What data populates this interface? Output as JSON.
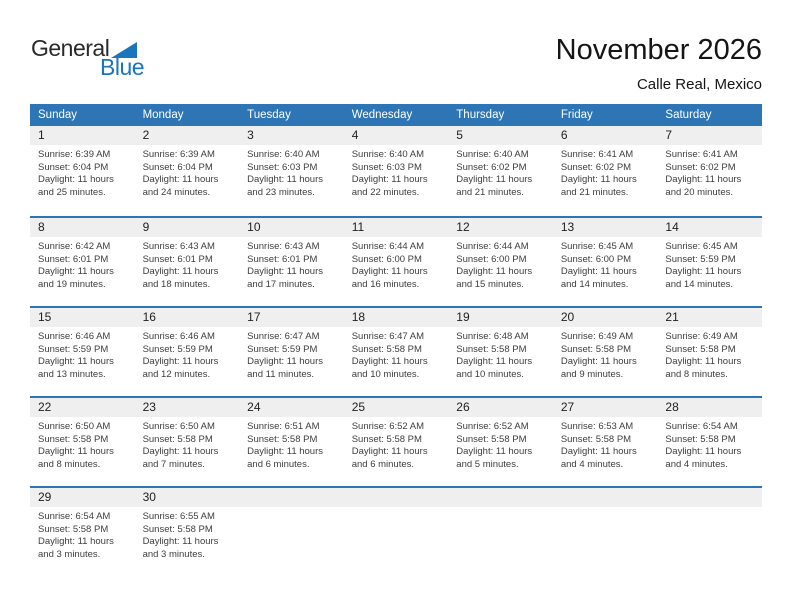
{
  "logo": {
    "word1": "General",
    "word2": "Blue"
  },
  "header": {
    "title": "November 2026",
    "subtitle": "Calle Real, Mexico"
  },
  "weekdays": [
    "Sunday",
    "Monday",
    "Tuesday",
    "Wednesday",
    "Thursday",
    "Friday",
    "Saturday"
  ],
  "weeks": [
    [
      {
        "day": "1",
        "sunrise": "Sunrise: 6:39 AM",
        "sunset": "Sunset: 6:04 PM",
        "daylight": "Daylight: 11 hours and 25 minutes."
      },
      {
        "day": "2",
        "sunrise": "Sunrise: 6:39 AM",
        "sunset": "Sunset: 6:04 PM",
        "daylight": "Daylight: 11 hours and 24 minutes."
      },
      {
        "day": "3",
        "sunrise": "Sunrise: 6:40 AM",
        "sunset": "Sunset: 6:03 PM",
        "daylight": "Daylight: 11 hours and 23 minutes."
      },
      {
        "day": "4",
        "sunrise": "Sunrise: 6:40 AM",
        "sunset": "Sunset: 6:03 PM",
        "daylight": "Daylight: 11 hours and 22 minutes."
      },
      {
        "day": "5",
        "sunrise": "Sunrise: 6:40 AM",
        "sunset": "Sunset: 6:02 PM",
        "daylight": "Daylight: 11 hours and 21 minutes."
      },
      {
        "day": "6",
        "sunrise": "Sunrise: 6:41 AM",
        "sunset": "Sunset: 6:02 PM",
        "daylight": "Daylight: 11 hours and 21 minutes."
      },
      {
        "day": "7",
        "sunrise": "Sunrise: 6:41 AM",
        "sunset": "Sunset: 6:02 PM",
        "daylight": "Daylight: 11 hours and 20 minutes."
      }
    ],
    [
      {
        "day": "8",
        "sunrise": "Sunrise: 6:42 AM",
        "sunset": "Sunset: 6:01 PM",
        "daylight": "Daylight: 11 hours and 19 minutes."
      },
      {
        "day": "9",
        "sunrise": "Sunrise: 6:43 AM",
        "sunset": "Sunset: 6:01 PM",
        "daylight": "Daylight: 11 hours and 18 minutes."
      },
      {
        "day": "10",
        "sunrise": "Sunrise: 6:43 AM",
        "sunset": "Sunset: 6:01 PM",
        "daylight": "Daylight: 11 hours and 17 minutes."
      },
      {
        "day": "11",
        "sunrise": "Sunrise: 6:44 AM",
        "sunset": "Sunset: 6:00 PM",
        "daylight": "Daylight: 11 hours and 16 minutes."
      },
      {
        "day": "12",
        "sunrise": "Sunrise: 6:44 AM",
        "sunset": "Sunset: 6:00 PM",
        "daylight": "Daylight: 11 hours and 15 minutes."
      },
      {
        "day": "13",
        "sunrise": "Sunrise: 6:45 AM",
        "sunset": "Sunset: 6:00 PM",
        "daylight": "Daylight: 11 hours and 14 minutes."
      },
      {
        "day": "14",
        "sunrise": "Sunrise: 6:45 AM",
        "sunset": "Sunset: 5:59 PM",
        "daylight": "Daylight: 11 hours and 14 minutes."
      }
    ],
    [
      {
        "day": "15",
        "sunrise": "Sunrise: 6:46 AM",
        "sunset": "Sunset: 5:59 PM",
        "daylight": "Daylight: 11 hours and 13 minutes."
      },
      {
        "day": "16",
        "sunrise": "Sunrise: 6:46 AM",
        "sunset": "Sunset: 5:59 PM",
        "daylight": "Daylight: 11 hours and 12 minutes."
      },
      {
        "day": "17",
        "sunrise": "Sunrise: 6:47 AM",
        "sunset": "Sunset: 5:59 PM",
        "daylight": "Daylight: 11 hours and 11 minutes."
      },
      {
        "day": "18",
        "sunrise": "Sunrise: 6:47 AM",
        "sunset": "Sunset: 5:58 PM",
        "daylight": "Daylight: 11 hours and 10 minutes."
      },
      {
        "day": "19",
        "sunrise": "Sunrise: 6:48 AM",
        "sunset": "Sunset: 5:58 PM",
        "daylight": "Daylight: 11 hours and 10 minutes."
      },
      {
        "day": "20",
        "sunrise": "Sunrise: 6:49 AM",
        "sunset": "Sunset: 5:58 PM",
        "daylight": "Daylight: 11 hours and 9 minutes."
      },
      {
        "day": "21",
        "sunrise": "Sunrise: 6:49 AM",
        "sunset": "Sunset: 5:58 PM",
        "daylight": "Daylight: 11 hours and 8 minutes."
      }
    ],
    [
      {
        "day": "22",
        "sunrise": "Sunrise: 6:50 AM",
        "sunset": "Sunset: 5:58 PM",
        "daylight": "Daylight: 11 hours and 8 minutes."
      },
      {
        "day": "23",
        "sunrise": "Sunrise: 6:50 AM",
        "sunset": "Sunset: 5:58 PM",
        "daylight": "Daylight: 11 hours and 7 minutes."
      },
      {
        "day": "24",
        "sunrise": "Sunrise: 6:51 AM",
        "sunset": "Sunset: 5:58 PM",
        "daylight": "Daylight: 11 hours and 6 minutes."
      },
      {
        "day": "25",
        "sunrise": "Sunrise: 6:52 AM",
        "sunset": "Sunset: 5:58 PM",
        "daylight": "Daylight: 11 hours and 6 minutes."
      },
      {
        "day": "26",
        "sunrise": "Sunrise: 6:52 AM",
        "sunset": "Sunset: 5:58 PM",
        "daylight": "Daylight: 11 hours and 5 minutes."
      },
      {
        "day": "27",
        "sunrise": "Sunrise: 6:53 AM",
        "sunset": "Sunset: 5:58 PM",
        "daylight": "Daylight: 11 hours and 4 minutes."
      },
      {
        "day": "28",
        "sunrise": "Sunrise: 6:54 AM",
        "sunset": "Sunset: 5:58 PM",
        "daylight": "Daylight: 11 hours and 4 minutes."
      }
    ],
    [
      {
        "day": "29",
        "sunrise": "Sunrise: 6:54 AM",
        "sunset": "Sunset: 5:58 PM",
        "daylight": "Daylight: 11 hours and 3 minutes."
      },
      {
        "day": "30",
        "sunrise": "Sunrise: 6:55 AM",
        "sunset": "Sunset: 5:58 PM",
        "daylight": "Daylight: 11 hours and 3 minutes."
      },
      null,
      null,
      null,
      null,
      null
    ]
  ],
  "theme": {
    "header_blue": "#2E75B6",
    "divider_blue": "#2E75B6",
    "band_gray": "#EFEFEF",
    "logo_blue": "#1B75BC"
  }
}
